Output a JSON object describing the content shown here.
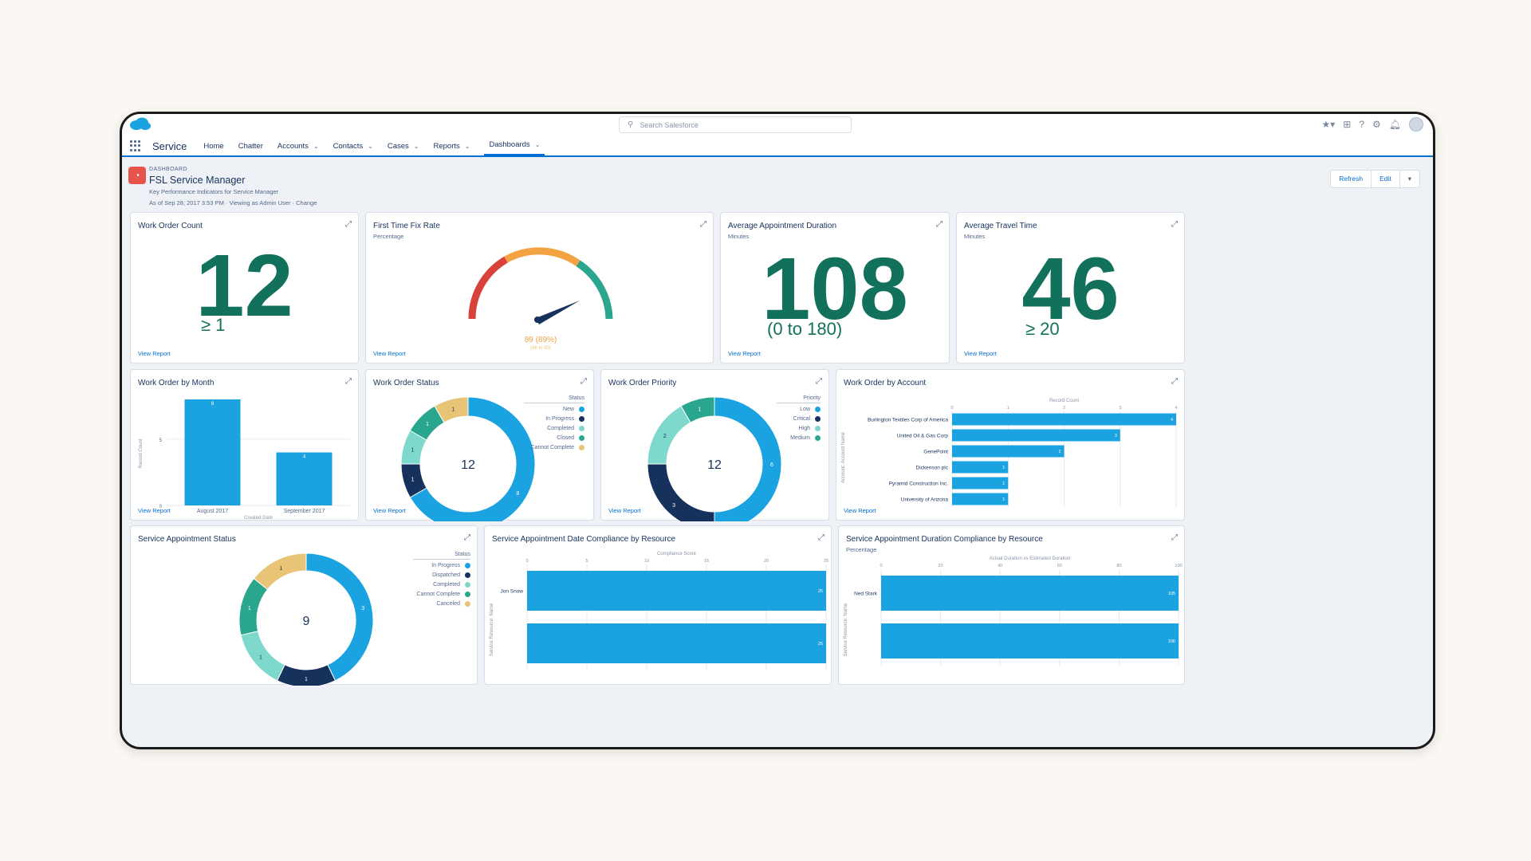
{
  "app": {
    "name": "Service",
    "search_placeholder": "Search Salesforce"
  },
  "nav": [
    {
      "label": "Home",
      "dropdown": false,
      "active": false
    },
    {
      "label": "Chatter",
      "dropdown": false,
      "active": false
    },
    {
      "label": "Accounts",
      "dropdown": true,
      "active": false
    },
    {
      "label": "Contacts",
      "dropdown": true,
      "active": false
    },
    {
      "label": "Cases",
      "dropdown": true,
      "active": false
    },
    {
      "label": "Reports",
      "dropdown": true,
      "active": false
    },
    {
      "label": "Dashboards",
      "dropdown": true,
      "active": true
    }
  ],
  "header": {
    "kicker": "DASHBOARD",
    "title": "FSL Service Manager",
    "subtitle": "Key Performance Indicators for Service Manager",
    "as_of": "As of Sep 28, 2017 3:53 PM · Viewing as Admin User · Change",
    "refresh": "Refresh",
    "edit": "Edit"
  },
  "view_report": "View Report",
  "colors": {
    "teal": "#12715a",
    "blue": "#1ba2e0",
    "navy": "#16325c",
    "green": "#2aa58e",
    "mint": "#7ed8cc",
    "gold": "#e8c477",
    "red": "#d9413b",
    "orange": "#f4a343"
  },
  "widgets": {
    "work_order_count": {
      "title": "Work Order Count",
      "value": "12",
      "range": "≥ 1"
    },
    "first_time_fix": {
      "title": "First Time Fix Rate",
      "subtitle": "Percentage",
      "value_label": "89 (89%)",
      "sub_label": "(96 to 90)",
      "value": 89,
      "max": 100
    },
    "avg_appt_duration": {
      "title": "Average Appointment Duration",
      "subtitle": "Minutes",
      "value": "108",
      "range": "(0 to 180)"
    },
    "avg_travel_time": {
      "title": "Average Travel Time",
      "subtitle": "Minutes",
      "value": "46",
      "range": "≥ 20"
    },
    "wo_by_month": {
      "title": "Work Order by Month",
      "ylabel": "Record Count",
      "xlabel": "Created Date"
    },
    "wo_status": {
      "title": "Work Order Status",
      "legend_title": "Status",
      "center": "12"
    },
    "wo_priority": {
      "title": "Work Order Priority",
      "legend_title": "Priority",
      "center": "12"
    },
    "wo_by_account": {
      "title": "Work Order by Account",
      "xlabel": "Record Count",
      "ylabel": "Account: Account Name"
    },
    "sa_status": {
      "title": "Service Appointment Status",
      "legend_title": "Status",
      "center": "9"
    },
    "sa_date_compliance": {
      "title": "Service Appointment Date Compliance by Resource",
      "xlabel": "Compliance Score",
      "ylabel": "Service Resource: Name"
    },
    "sa_duration_compliance": {
      "title": "Service Appointment Duration Compliance by Resource",
      "subtitle": "Percentage",
      "xlabel": "Actual Duration vs Estimated Duration",
      "ylabel": "Service Resource: Name"
    }
  },
  "chart_data": [
    {
      "type": "bar",
      "title": "Work Order by Month",
      "categories": [
        "August 2017",
        "September 2017"
      ],
      "values": [
        8,
        4
      ],
      "ylim": [
        0,
        8
      ],
      "yticks": [
        0,
        5
      ],
      "ylabel": "Record Count",
      "xlabel": "Created Date"
    },
    {
      "type": "pie",
      "title": "Work Order Status",
      "series": [
        {
          "name": "New",
          "value": 8,
          "color": "#1ba2e0"
        },
        {
          "name": "In Progress",
          "value": 1,
          "color": "#16325c"
        },
        {
          "name": "Completed",
          "value": 1,
          "color": "#7ed8cc"
        },
        {
          "name": "Closed",
          "value": 1,
          "color": "#2aa58e"
        },
        {
          "name": "Cannot Complete",
          "value": 1,
          "color": "#e8c477"
        }
      ]
    },
    {
      "type": "pie",
      "title": "Work Order Priority",
      "series": [
        {
          "name": "Low",
          "value": 6,
          "color": "#1ba2e0"
        },
        {
          "name": "Critical",
          "value": 3,
          "color": "#16325c"
        },
        {
          "name": "High",
          "value": 2,
          "color": "#7ed8cc"
        },
        {
          "name": "Medium",
          "value": 1,
          "color": "#2aa58e"
        }
      ]
    },
    {
      "type": "bar",
      "orientation": "horizontal",
      "title": "Work Order by Account",
      "categories": [
        "Burlington Textiles Corp of America",
        "United Oil & Gas Corp",
        "GenePoint",
        "Dickenson plc",
        "Pyramid Construction Inc.",
        "University of Arizona"
      ],
      "values": [
        4,
        3,
        2,
        1,
        1,
        1
      ],
      "xlim": [
        0,
        4
      ],
      "xticks": [
        0,
        1,
        2,
        3,
        4
      ],
      "xlabel": "Record Count"
    },
    {
      "type": "pie",
      "title": "Service Appointment Status",
      "series": [
        {
          "name": "In Progress",
          "value": 3,
          "color": "#1ba2e0"
        },
        {
          "name": "Dispatched",
          "value": 1,
          "color": "#16325c"
        },
        {
          "name": "Completed",
          "value": 1,
          "color": "#7ed8cc"
        },
        {
          "name": "Cannot Complete",
          "value": 1,
          "color": "#2aa58e"
        },
        {
          "name": "Canceled",
          "value": 1,
          "color": "#e8c477"
        }
      ],
      "extra_unlabeled": 2
    },
    {
      "type": "bar",
      "orientation": "horizontal",
      "title": "Service Appointment Date Compliance by Resource",
      "categories": [
        "Jon Snow",
        ""
      ],
      "values": [
        25,
        25
      ],
      "xlim": [
        0,
        25
      ],
      "xticks": [
        0,
        5,
        10,
        15,
        20,
        25
      ],
      "xlabel": "Compliance Score"
    },
    {
      "type": "bar",
      "orientation": "horizontal",
      "title": "Service Appointment Duration Compliance by Resource",
      "categories": [
        "Ned Stark",
        ""
      ],
      "values": [
        105,
        100
      ],
      "xlim": [
        0,
        100
      ],
      "xticks": [
        0,
        20,
        40,
        60,
        80,
        100
      ],
      "xlabel": "Actual Duration vs Estimated Duration"
    }
  ]
}
